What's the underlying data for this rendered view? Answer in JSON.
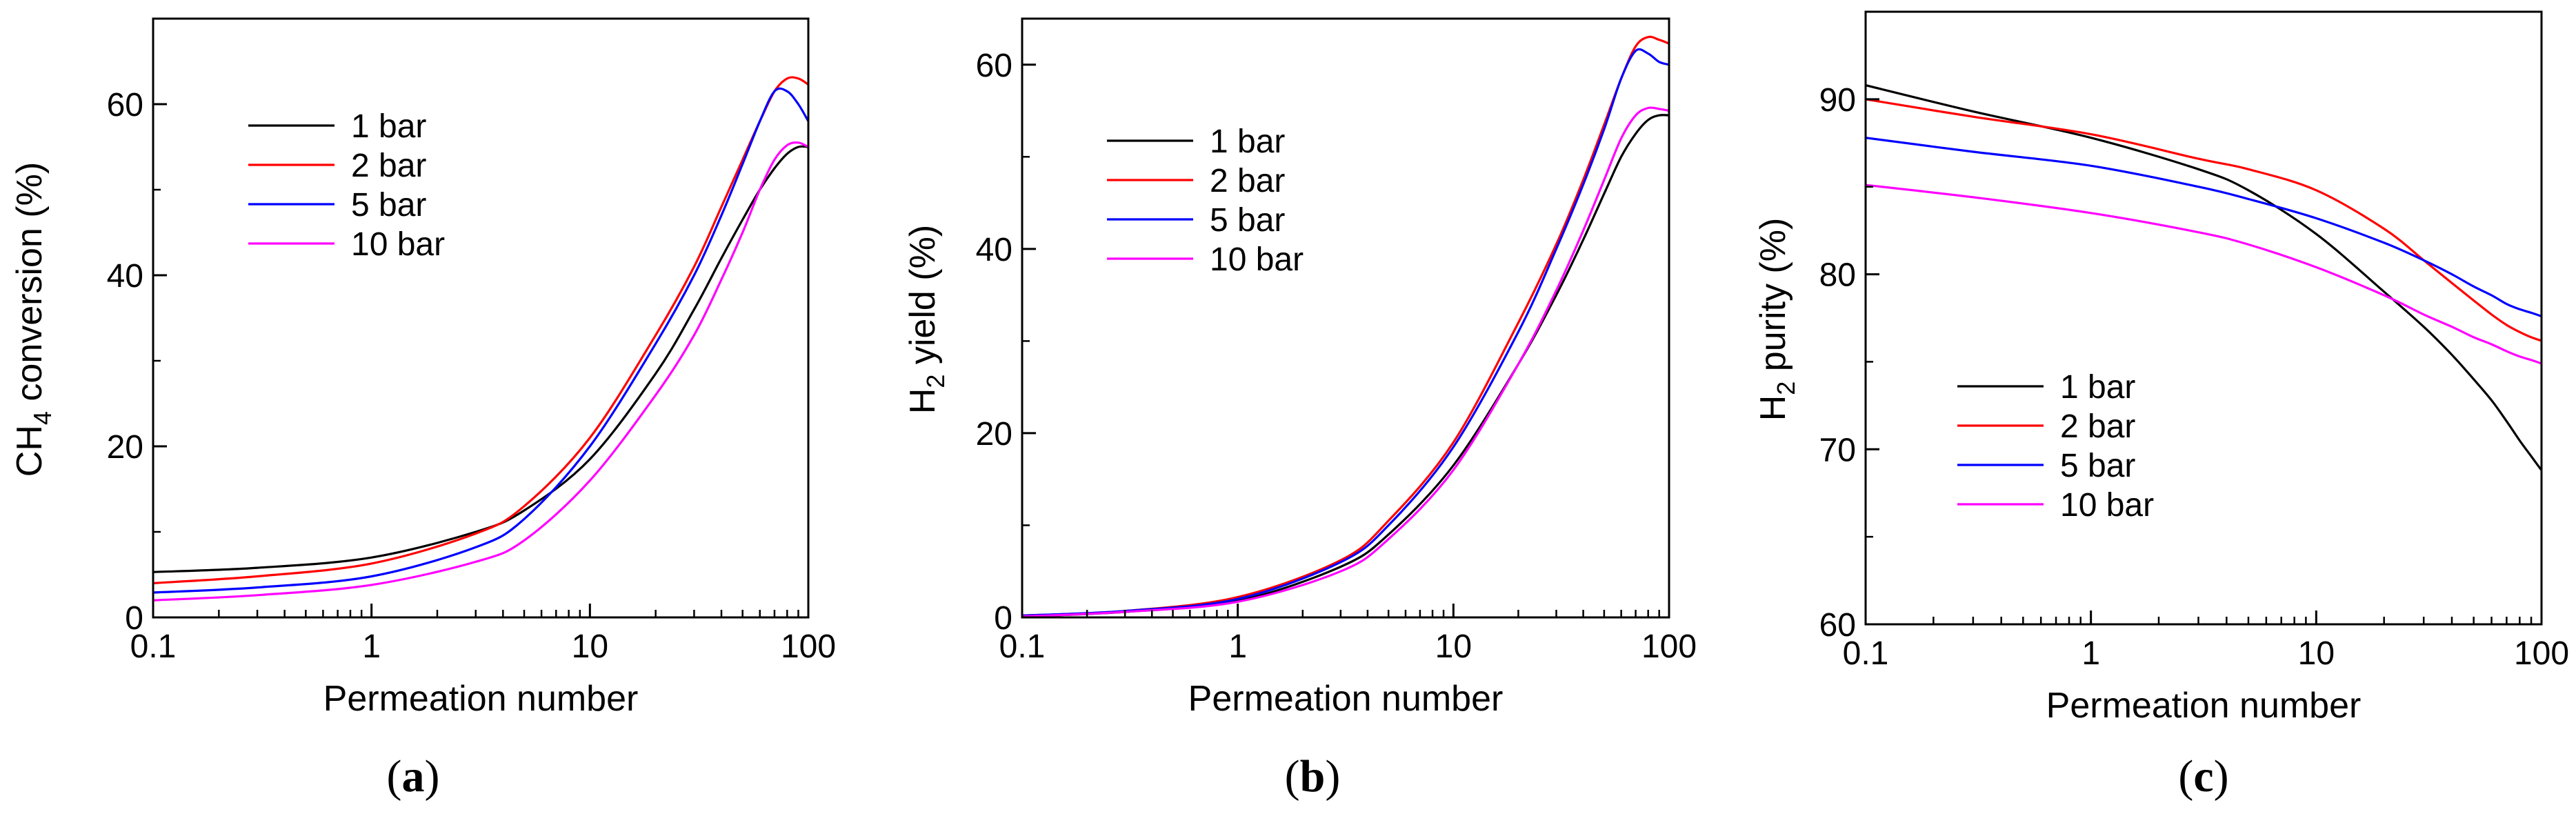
{
  "chart_data": [
    {
      "type": "line",
      "panel_label": "a",
      "xscale": "log",
      "xlabel": "Permeation number",
      "ylabel": {
        "pre": "CH",
        "sub": "4",
        "post": " conversion (%)"
      },
      "xlim": [
        0.1,
        100
      ],
      "ylim": [
        0,
        70
      ],
      "x_ticks": [
        {
          "value": 0.1,
          "label": "0.1"
        },
        {
          "value": 1,
          "label": "1"
        },
        {
          "value": 10,
          "label": "10"
        },
        {
          "value": 100,
          "label": "100"
        }
      ],
      "y_ticks": [
        {
          "value": 0,
          "label": "0"
        },
        {
          "value": 20,
          "label": "20"
        },
        {
          "value": 40,
          "label": "40"
        },
        {
          "value": 60,
          "label": "60"
        }
      ],
      "legend_position": "top-left",
      "x": [
        0.1,
        0.3,
        1,
        3,
        5,
        10,
        20,
        30,
        40,
        50,
        60,
        70,
        80,
        90,
        100
      ],
      "series": [
        {
          "name": "1 bar",
          "color": "#000000",
          "values": [
            5.3,
            5.8,
            7.0,
            10.0,
            12.5,
            18.5,
            28.5,
            36,
            42,
            46.5,
            50,
            52.5,
            54.2,
            55,
            55
          ]
        },
        {
          "name": "2 bar",
          "color": "#ff0000",
          "values": [
            4.0,
            4.8,
            6.3,
            9.8,
            13.0,
            21.0,
            33,
            41,
            48,
            53.5,
            58,
            61.5,
            63,
            63,
            62.3
          ]
        },
        {
          "name": "5 bar",
          "color": "#0000ff",
          "values": [
            2.9,
            3.5,
            4.8,
            8.2,
            11.5,
            20.0,
            32,
            40,
            47,
            53,
            58,
            61.5,
            61.5,
            60,
            58
          ]
        },
        {
          "name": "10 bar",
          "color": "#ff00ff",
          "values": [
            2.0,
            2.6,
            3.8,
            6.5,
            9.0,
            16.0,
            26,
            33,
            39.5,
            45,
            50,
            53.5,
            55.2,
            55.5,
            55
          ]
        }
      ]
    },
    {
      "type": "line",
      "panel_label": "b",
      "xscale": "log",
      "xlabel": "Permeation number",
      "ylabel": {
        "pre": "H",
        "sub": "2",
        "post": " yield (%)"
      },
      "xlim": [
        0.1,
        100
      ],
      "ylim": [
        0,
        65
      ],
      "x_ticks": [
        {
          "value": 0.1,
          "label": "0.1"
        },
        {
          "value": 1,
          "label": "1"
        },
        {
          "value": 10,
          "label": "10"
        },
        {
          "value": 100,
          "label": "100"
        }
      ],
      "y_ticks": [
        {
          "value": 0,
          "label": "0"
        },
        {
          "value": 20,
          "label": "20"
        },
        {
          "value": 40,
          "label": "40"
        },
        {
          "value": 60,
          "label": "60"
        }
      ],
      "legend_position": "top-left",
      "x": [
        0.1,
        0.3,
        1,
        3,
        5,
        10,
        20,
        30,
        40,
        50,
        60,
        70,
        80,
        90,
        100
      ],
      "series": [
        {
          "name": "1 bar",
          "color": "#000000",
          "values": [
            0.1,
            0.6,
            1.8,
            5.5,
            9.0,
            16.5,
            27.5,
            35,
            41,
            46,
            50,
            52.5,
            54,
            54.5,
            54.5
          ]
        },
        {
          "name": "2 bar",
          "color": "#ff0000",
          "values": [
            0.2,
            0.7,
            2.2,
            6.2,
            10.5,
            19.0,
            32,
            40.5,
            47.5,
            53.5,
            58.5,
            62,
            63,
            62.7,
            62.3
          ]
        },
        {
          "name": "5 bar",
          "color": "#0000ff",
          "values": [
            0.2,
            0.7,
            2.0,
            6.0,
            10.0,
            18.5,
            31,
            40,
            47,
            53,
            58.5,
            61.5,
            61.2,
            60.3,
            60
          ]
        },
        {
          "name": "10 bar",
          "color": "#ff00ff",
          "values": [
            0.1,
            0.6,
            1.7,
            5.0,
            8.5,
            16.0,
            27.5,
            35.5,
            42,
            47.5,
            52,
            54.5,
            55.3,
            55.2,
            55
          ]
        }
      ]
    },
    {
      "type": "line",
      "panel_label": "c",
      "xscale": "log",
      "xlabel": "Permeation number",
      "ylabel": {
        "pre": "H",
        "sub": "2",
        "post": " purity (%)"
      },
      "xlim": [
        0.1,
        100
      ],
      "ylim": [
        60,
        95
      ],
      "x_ticks": [
        {
          "value": 0.1,
          "label": "0.1"
        },
        {
          "value": 1,
          "label": "1"
        },
        {
          "value": 10,
          "label": "10"
        },
        {
          "value": 100,
          "label": "100"
        }
      ],
      "y_ticks": [
        {
          "value": 60,
          "label": "60"
        },
        {
          "value": 70,
          "label": "70"
        },
        {
          "value": 80,
          "label": "80"
        },
        {
          "value": 90,
          "label": "90"
        }
      ],
      "legend_position": "bottom-left",
      "x": [
        0.1,
        0.3,
        1,
        3,
        5,
        10,
        20,
        30,
        40,
        50,
        60,
        70,
        80,
        90,
        100
      ],
      "series": [
        {
          "name": "1 bar",
          "color": "#000000",
          "values": [
            90.8,
            89.3,
            87.8,
            86.0,
            84.8,
            82.3,
            79.0,
            77.0,
            75.4,
            74.0,
            72.8,
            71.6,
            70.5,
            69.6,
            68.8
          ]
        },
        {
          "name": "2 bar",
          "color": "#ff0000",
          "values": [
            90.0,
            89.0,
            88.0,
            86.6,
            86.0,
            84.8,
            82.6,
            80.8,
            79.5,
            78.5,
            77.7,
            77.1,
            76.7,
            76.4,
            76.2
          ]
        },
        {
          "name": "5 bar",
          "color": "#0000ff",
          "values": [
            87.8,
            87.0,
            86.2,
            85.0,
            84.3,
            83.2,
            81.8,
            80.8,
            80.0,
            79.3,
            78.8,
            78.3,
            78.0,
            77.8,
            77.6
          ]
        },
        {
          "name": "10 bar",
          "color": "#ff00ff",
          "values": [
            85.1,
            84.4,
            83.5,
            82.4,
            81.7,
            80.4,
            78.8,
            77.7,
            77.0,
            76.4,
            76.0,
            75.6,
            75.3,
            75.1,
            74.9
          ]
        }
      ]
    }
  ]
}
